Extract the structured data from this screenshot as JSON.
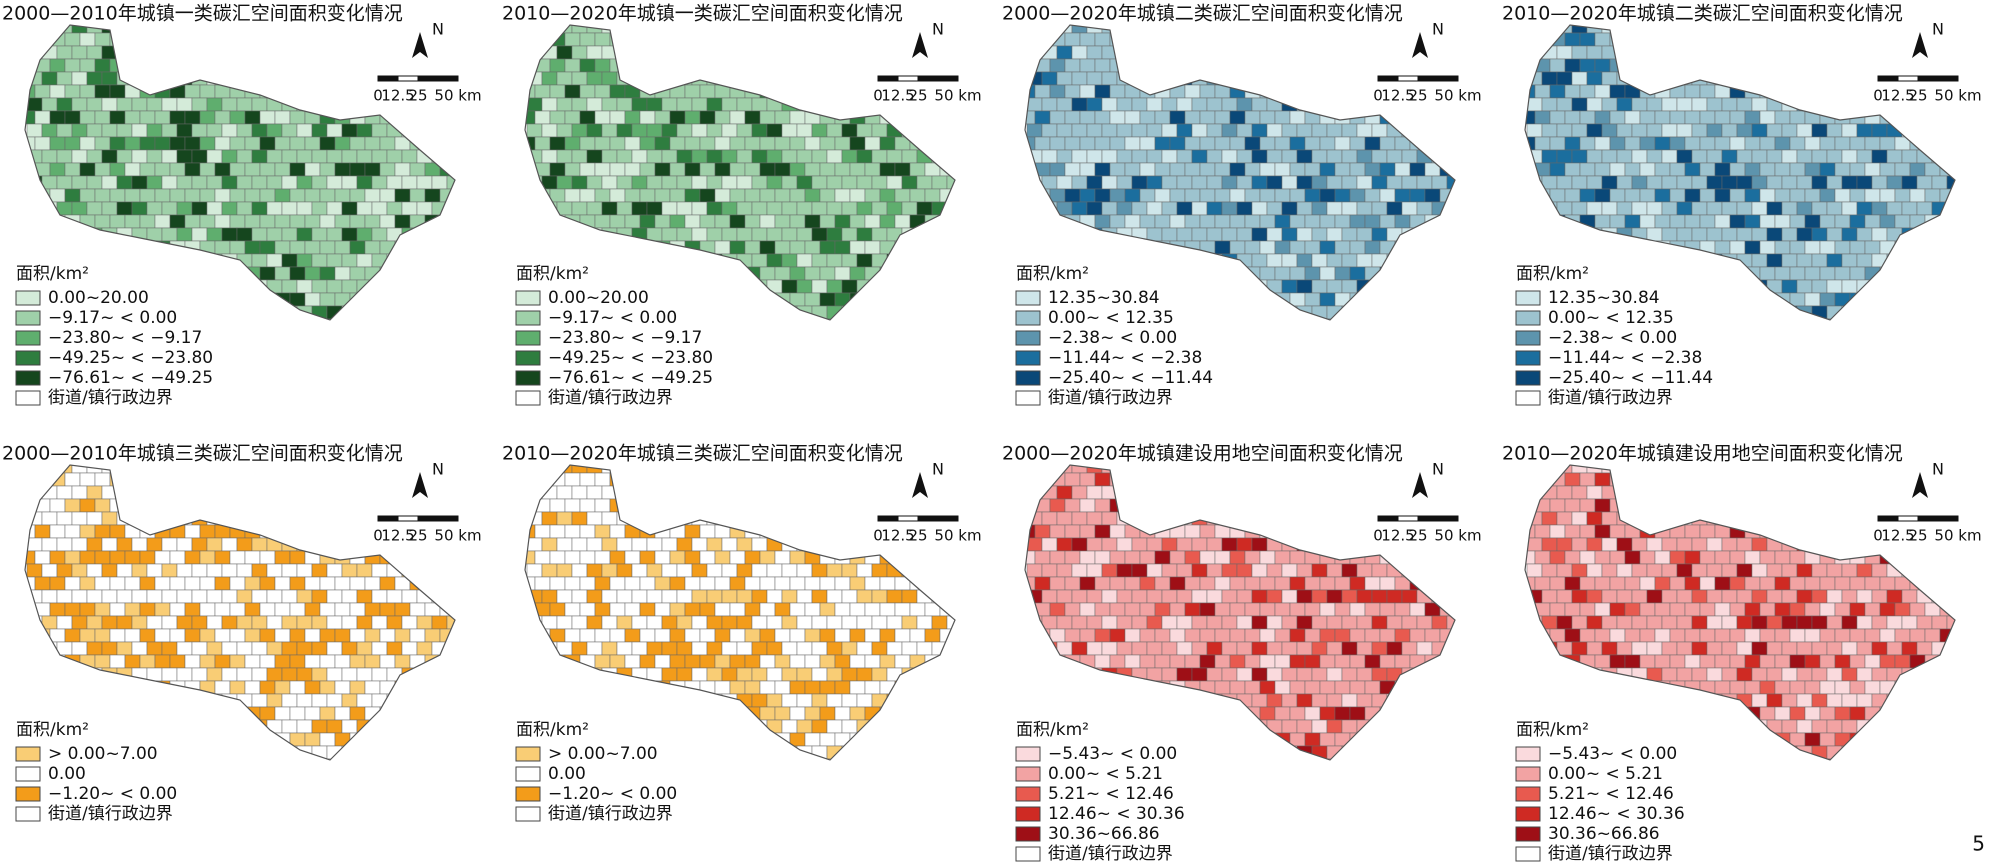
{
  "page_number": "5",
  "north": "N",
  "scale_bar": [
    "0",
    "12.5",
    "25",
    "50 km"
  ],
  "legend_title": "面积/km²",
  "boundary_label": "街道/镇行政边界",
  "panels": [
    {
      "title": "2000—2010年城镇一类碳汇空间面积变化情况",
      "legend": [
        {
          "label": "0.00~20.00",
          "color": "#d4ebd9"
        },
        {
          "label": "−9.17~ < 0.00",
          "color": "#9fd0a9"
        },
        {
          "label": "−23.80~ < −9.17",
          "color": "#5fae6e"
        },
        {
          "label": "−49.25~ < −23.80",
          "color": "#2e7d3f"
        },
        {
          "label": "−76.61~ < −49.25",
          "color": "#15461e"
        }
      ]
    },
    {
      "title": "2010—2020年城镇一类碳汇空间面积变化情况",
      "legend": [
        {
          "label": "0.00~20.00",
          "color": "#d4ebd9"
        },
        {
          "label": "−9.17~ < 0.00",
          "color": "#9fd0a9"
        },
        {
          "label": "−23.80~ < −9.17",
          "color": "#5fae6e"
        },
        {
          "label": "−49.25~ < −23.80",
          "color": "#2e7d3f"
        },
        {
          "label": "−76.61~ < −49.25",
          "color": "#15461e"
        }
      ]
    },
    {
      "title": "2000—2020年城镇二类碳汇空间面积变化情况",
      "legend": [
        {
          "label": "12.35~30.84",
          "color": "#cfe6ea"
        },
        {
          "label": "0.00~ < 12.35",
          "color": "#9dc3cf"
        },
        {
          "label": "−2.38~ < 0.00",
          "color": "#5d94ad"
        },
        {
          "label": "−11.44~ < −2.38",
          "color": "#1b6e9e"
        },
        {
          "label": "−25.40~ < −11.44",
          "color": "#0a4878"
        }
      ]
    },
    {
      "title": "2010—2020年城镇二类碳汇空间面积变化情况",
      "legend": [
        {
          "label": "12.35~30.84",
          "color": "#cfe6ea"
        },
        {
          "label": "0.00~ < 12.35",
          "color": "#9dc3cf"
        },
        {
          "label": "−2.38~ < 0.00",
          "color": "#5d94ad"
        },
        {
          "label": "−11.44~ < −2.38",
          "color": "#1b6e9e"
        },
        {
          "label": "−25.40~ < −11.44",
          "color": "#0a4878"
        }
      ]
    },
    {
      "title": "2000—2010年城镇三类碳汇空间面积变化情况",
      "legend": [
        {
          "label": "> 0.00~7.00",
          "color": "#f9cd75"
        },
        {
          "label": "0.00",
          "color": "#ffffff"
        },
        {
          "label": "−1.20~ < 0.00",
          "color": "#f39c1a"
        }
      ]
    },
    {
      "title": "2010—2020年城镇三类碳汇空间面积变化情况",
      "legend": [
        {
          "label": "> 0.00~7.00",
          "color": "#f9cd75"
        },
        {
          "label": "0.00",
          "color": "#ffffff"
        },
        {
          "label": "−1.20~ < 0.00",
          "color": "#f39c1a"
        }
      ]
    },
    {
      "title": "2000—2020年城镇建设用地空间面积变化情况",
      "legend": [
        {
          "label": "−5.43~ < 0.00",
          "color": "#fadadd"
        },
        {
          "label": "0.00~ < 5.21",
          "color": "#f2a3a3"
        },
        {
          "label": "5.21~ < 12.46",
          "color": "#e85a4f"
        },
        {
          "label": "12.46~ < 30.36",
          "color": "#cf2a23"
        },
        {
          "label": "30.36~66.86",
          "color": "#9e0f16"
        }
      ]
    },
    {
      "title": "2010—2020年城镇建设用地空间面积变化情况",
      "legend": [
        {
          "label": "−5.43~ < 0.00",
          "color": "#fadadd"
        },
        {
          "label": "0.00~ < 5.21",
          "color": "#f2a3a3"
        },
        {
          "label": "5.21~ < 12.46",
          "color": "#e85a4f"
        },
        {
          "label": "12.46~ < 30.36",
          "color": "#cf2a23"
        },
        {
          "label": "30.36~66.86",
          "color": "#9e0f16"
        }
      ]
    }
  ]
}
